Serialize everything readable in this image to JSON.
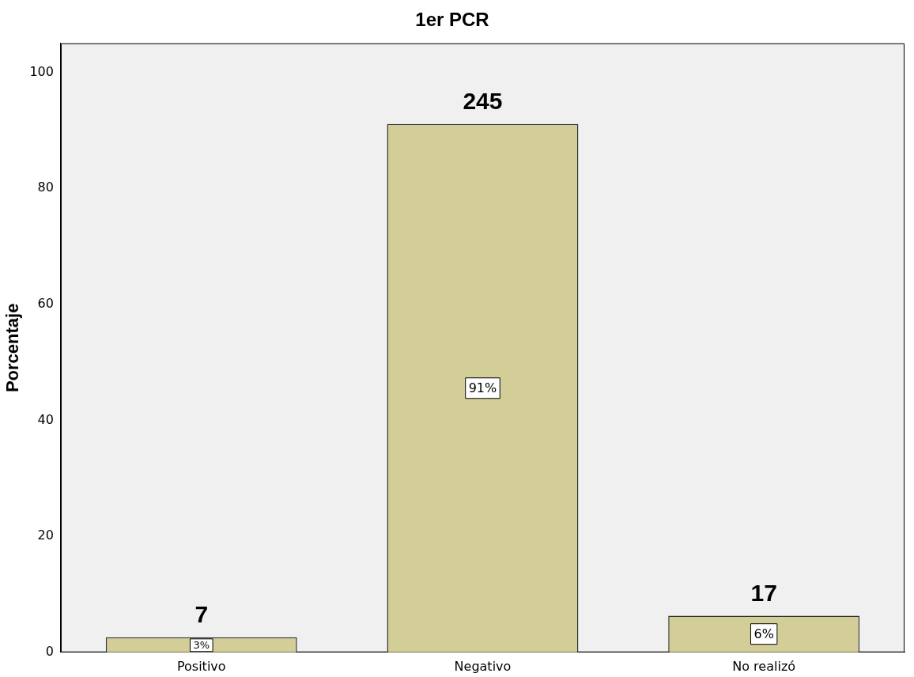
{
  "chart_data": {
    "type": "bar",
    "title": "1er PCR",
    "ylabel": "Porcentaje",
    "categories": [
      "Positivo",
      "Negativo",
      "No realizó"
    ],
    "values": [
      2.6,
      91.1,
      6.3
    ],
    "color": "#d3ce97",
    "value_labels": [
      "3%",
      "91%",
      "6%"
    ],
    "annotations": [
      {
        "text": "7",
        "x": "Positivo",
        "y": 2.6
      },
      {
        "text": "245",
        "x": "Negativo",
        "y": 91.1
      },
      {
        "text": "17",
        "x": "No realizó",
        "y": 6.3
      }
    ],
    "ylim": [
      0,
      105
    ],
    "yticks": [
      0,
      20,
      40,
      60,
      80,
      100
    ],
    "grid": false,
    "legend": false
  }
}
